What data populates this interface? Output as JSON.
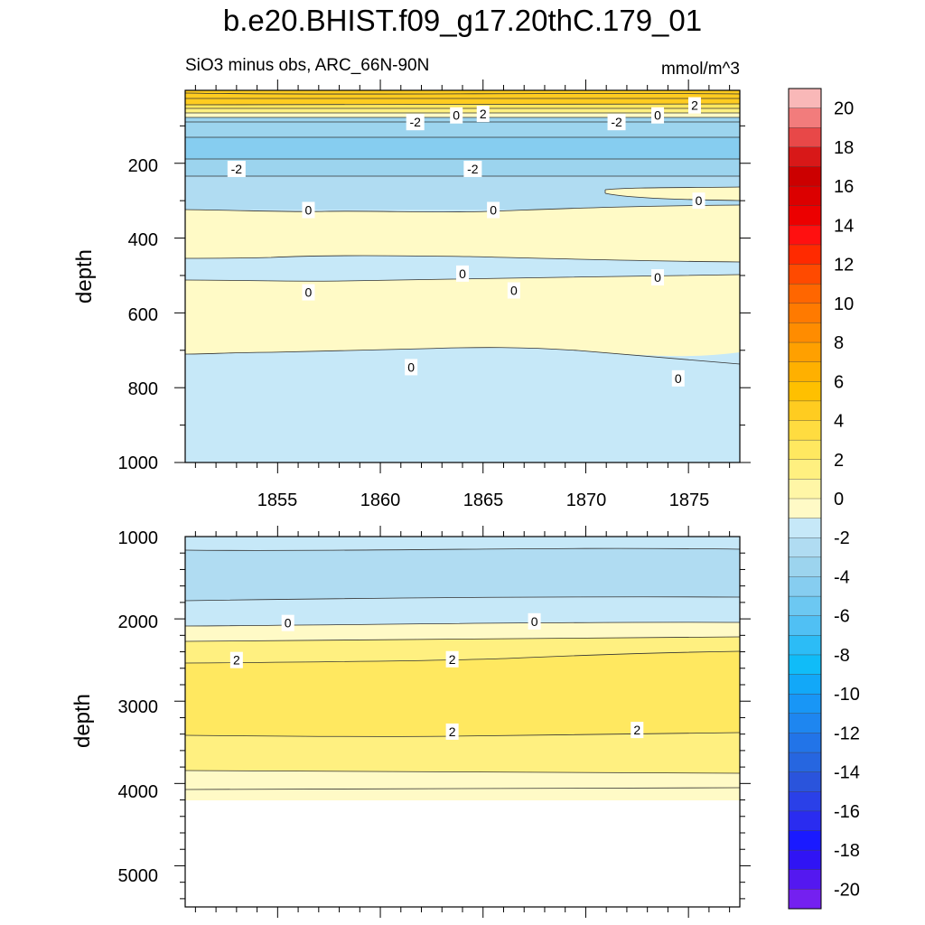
{
  "title": "b.e20.BHIST.f09_g17.20thC.179_01",
  "subtitle_left": "SiO3 minus obs, ARC_66N-90N",
  "subtitle_right": "mmol/m^3",
  "chart_data": [
    {
      "type": "contour",
      "panel": "upper",
      "ylabel": "depth",
      "x_ticks": [
        "1855",
        "1860",
        "1865",
        "1870",
        "1875"
      ],
      "y_ticks": [
        "200",
        "400",
        "600",
        "800",
        "1000"
      ],
      "xlim": [
        1850.5,
        1877.5
      ],
      "ylim": [
        1000,
        5
      ],
      "y_reversed": true,
      "contour_labels": [
        {
          "x": 1865.0,
          "y": 68,
          "text": "2"
        },
        {
          "x": 1875.3,
          "y": 45,
          "text": "2"
        },
        {
          "x": 1863.7,
          "y": 72,
          "text": "0"
        },
        {
          "x": 1873.5,
          "y": 72,
          "text": "0"
        },
        {
          "x": 1861.7,
          "y": 90,
          "text": "-2"
        },
        {
          "x": 1871.5,
          "y": 90,
          "text": "-2"
        },
        {
          "x": 1853.0,
          "y": 215,
          "text": "-2"
        },
        {
          "x": 1864.5,
          "y": 215,
          "text": "-2"
        },
        {
          "x": 1856.5,
          "y": 325,
          "text": "0"
        },
        {
          "x": 1865.5,
          "y": 325,
          "text": "0"
        },
        {
          "x": 1875.5,
          "y": 300,
          "text": "0"
        },
        {
          "x": 1864.0,
          "y": 495,
          "text": "0"
        },
        {
          "x": 1873.5,
          "y": 505,
          "text": "0"
        },
        {
          "x": 1856.5,
          "y": 545,
          "text": "0"
        },
        {
          "x": 1866.5,
          "y": 540,
          "text": "0"
        },
        {
          "x": 1861.5,
          "y": 745,
          "text": "0"
        },
        {
          "x": 1874.5,
          "y": 775,
          "text": "0"
        }
      ]
    },
    {
      "type": "contour",
      "panel": "lower",
      "ylabel": "depth",
      "y_ticks": [
        "1000",
        "2000",
        "3000",
        "4000",
        "5000"
      ],
      "xlim": [
        1850.5,
        1877.5
      ],
      "ylim": [
        5500,
        1000
      ],
      "y_reversed": true,
      "contour_labels": [
        {
          "x": 1855.5,
          "y": 2050,
          "text": "0"
        },
        {
          "x": 1867.5,
          "y": 2030,
          "text": "0"
        },
        {
          "x": 1853.0,
          "y": 2500,
          "text": "2"
        },
        {
          "x": 1863.5,
          "y": 2490,
          "text": "2"
        },
        {
          "x": 1863.5,
          "y": 3370,
          "text": "2"
        },
        {
          "x": 1872.5,
          "y": 3350,
          "text": "2"
        }
      ]
    }
  ],
  "colorbar": {
    "tick_labels": [
      "20",
      "18",
      "16",
      "14",
      "12",
      "10",
      "8",
      "6",
      "4",
      "2",
      "0",
      "-2",
      "-4",
      "-6",
      "-8",
      "-10",
      "-12",
      "-14",
      "-16",
      "-18",
      "-20"
    ],
    "colors_top_to_bottom": [
      "#f9b8b8",
      "#f27c7c",
      "#e84848",
      "#d81818",
      "#cc0000",
      "#dc0000",
      "#ec0000",
      "#ff1010",
      "#ff2a00",
      "#ff4a00",
      "#ff6600",
      "#ff7a00",
      "#ff8c00",
      "#ffa000",
      "#ffb000",
      "#ffc000",
      "#ffcc20",
      "#ffdc40",
      "#ffe860",
      "#fff080",
      "#fff6a6",
      "#fffac6",
      "#c6e8f8",
      "#b0dcf2",
      "#9cd4ee",
      "#86cdf0",
      "#6cc8f2",
      "#50c0f4",
      "#2cbcf6",
      "#10bcf8",
      "#12a8f8",
      "#1896f6",
      "#1e86f0",
      "#2274e8",
      "#2666e0",
      "#2a54dc",
      "#2a40e8",
      "#2a2cf0",
      "#1a1aff",
      "#3014f4",
      "#5418f0",
      "#7420f0"
    ]
  }
}
